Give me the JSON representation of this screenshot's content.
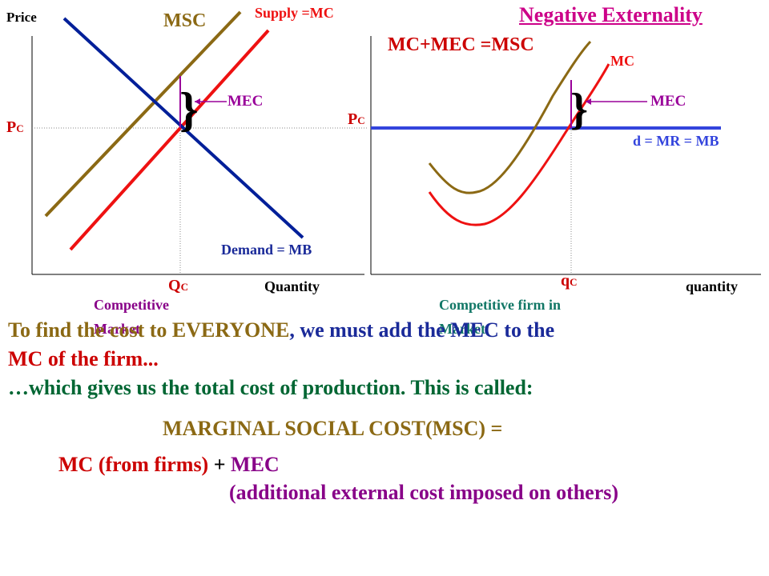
{
  "title": "Negative Externality",
  "colors": {
    "msc": "#8B6914",
    "mc": "#ee1111",
    "demand": "#001f99",
    "price_line": "#3344dd",
    "mec": "#990099",
    "green": "#117766",
    "brown": "#8B6914",
    "navy": "#1a2a99",
    "purple": "#880088",
    "red": "#cc0000",
    "darkgreen": "#006633"
  },
  "left_graph": {
    "y_axis_label": "Price",
    "x_axis_label": "Quantity",
    "price_label": "P",
    "price_sub": "C",
    "quantity_label": "Q",
    "quantity_sub": "C",
    "msc_label": "MSC",
    "supply_label": "Supply =MC",
    "mec_label": "MEC",
    "demand_label": "Demand = MB",
    "caption_line1": "Competitive",
    "caption_line2": "Market"
  },
  "right_graph": {
    "msc_label": "MC+MEC =MSC",
    "mc_label": "MC",
    "mec_label": "MEC",
    "price_label": "P",
    "price_sub": "C",
    "demand_label": "d = MR = MB",
    "quantity_label": "q",
    "quantity_sub": "C",
    "x_axis_label": "quantity",
    "caption_line1": "Competitive firm in",
    "caption_line2": "Market"
  },
  "text": {
    "line1_a": "To find the cost to EVERYONE",
    "line1_b": ", we must add the MEC to the",
    "line2": "MC of the firm...",
    "line3": "…which gives us the total cost of production. This is called:",
    "msc_def": "MARGINAL SOCIAL COST(MSC) =",
    "mc_part": "MC (from firms)",
    "plus": " + ",
    "mec_part": "MEC",
    "mec_desc": "(additional external cost imposed on others)"
  }
}
